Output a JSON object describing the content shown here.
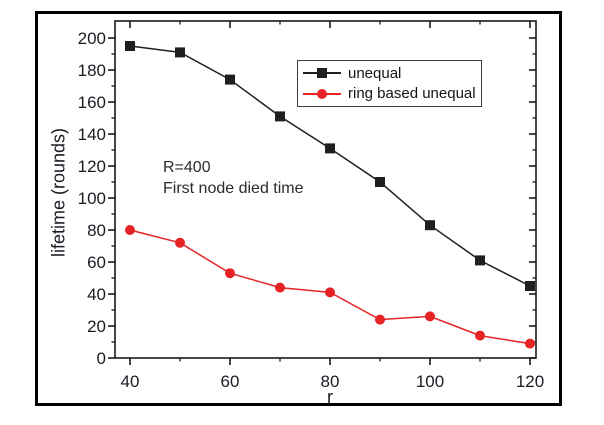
{
  "figure": {
    "background": "#ffffff",
    "frame_border_color": "#000000",
    "axis_color": "#1a1a1a",
    "text_color": "#1b1b24"
  },
  "chart_data": {
    "type": "line",
    "title": "",
    "xlabel": "r",
    "ylabel": "lifetime (rounds)",
    "xlim": [
      37,
      121.2
    ],
    "ylim": [
      0,
      210
    ],
    "grid": false,
    "legend_position": "upper-right",
    "x_major_ticks": [
      40,
      60,
      80,
      100,
      120
    ],
    "x_minor_ticks": [
      50,
      70,
      90,
      110
    ],
    "y_major_ticks": [
      0,
      20,
      40,
      60,
      80,
      100,
      120,
      140,
      160,
      180,
      200
    ],
    "y_minor_ticks": [
      10,
      30,
      50,
      70,
      90,
      110,
      130,
      150,
      170,
      190
    ],
    "x": [
      40,
      50,
      60,
      70,
      80,
      90,
      100,
      110,
      120
    ],
    "series": [
      {
        "name": "unequal",
        "color": "#1f1f1f",
        "marker": "square",
        "values": [
          195,
          191,
          174,
          151,
          131,
          110,
          83,
          61,
          45
        ]
      },
      {
        "name": "ring based unequal",
        "color": "#e62425",
        "marker": "circle",
        "values": [
          80,
          72,
          53,
          44,
          41,
          24,
          26,
          14,
          9
        ]
      }
    ],
    "annotation": {
      "line1": "R=400",
      "line2": "First node died time"
    }
  }
}
